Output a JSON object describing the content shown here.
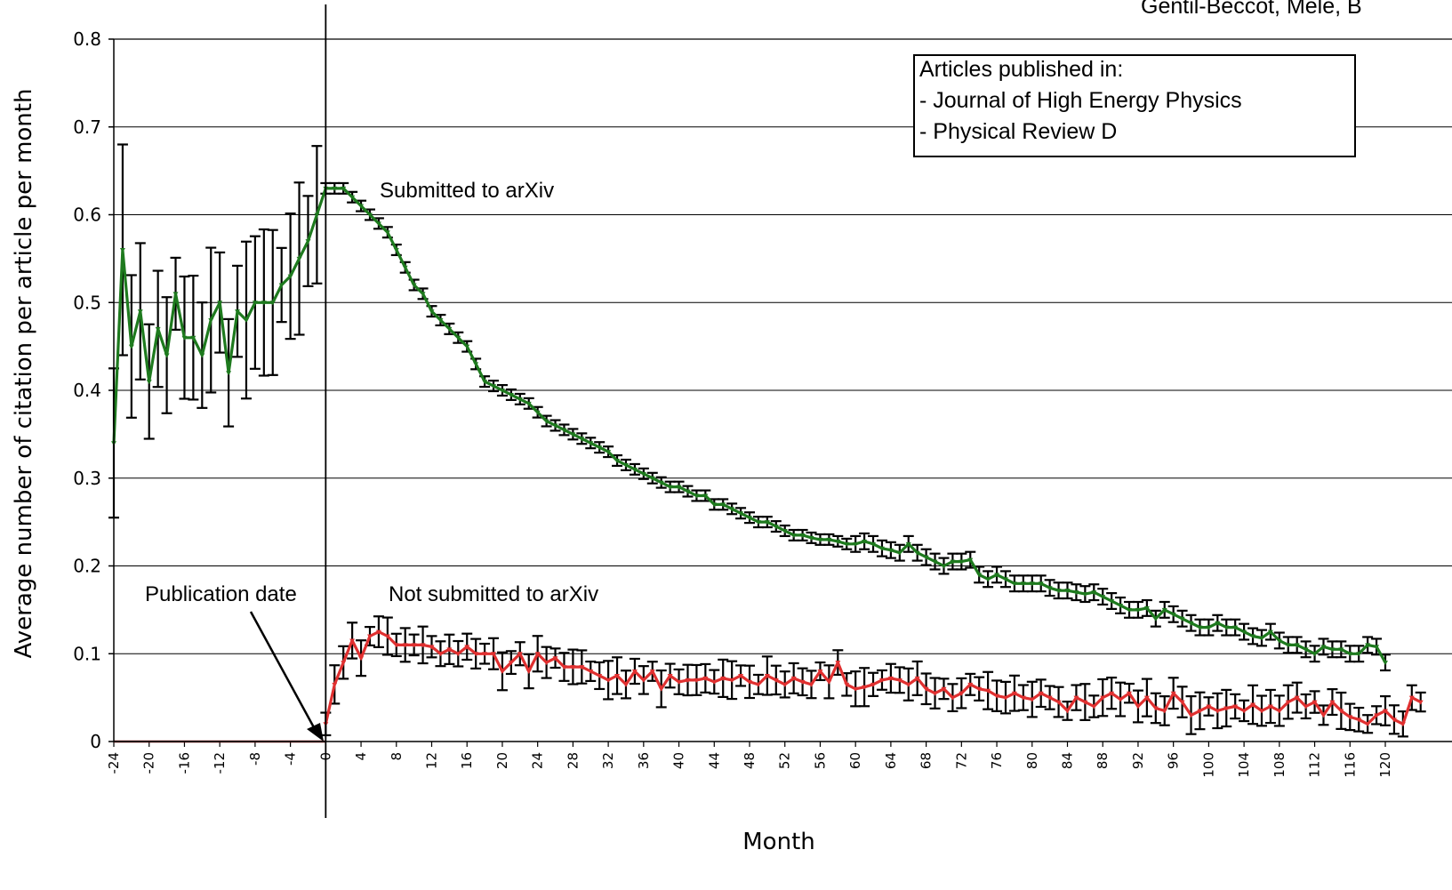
{
  "chart_data": {
    "type": "line",
    "title": "",
    "credit": "Gentil-Beccot, Mele, B",
    "xlabel": "Month",
    "ylabel": "Average number of citation per article per month",
    "xlim": [
      -24,
      120
    ],
    "ylim": [
      0,
      0.8
    ],
    "yticks": [
      "0",
      "0.1",
      "0.2",
      "0.3",
      "0.4",
      "0.5",
      "0.6",
      "0.7",
      "0.8"
    ],
    "xticks": [
      "-24",
      "-20",
      "-16",
      "-12",
      "-8",
      "-4",
      "0",
      "4",
      "8",
      "12",
      "16",
      "20",
      "24",
      "28",
      "32",
      "36",
      "40",
      "44",
      "48",
      "52",
      "56",
      "60",
      "64",
      "68",
      "72",
      "76",
      "80",
      "84",
      "88",
      "92",
      "96",
      "100",
      "104",
      "108",
      "112",
      "116",
      "120"
    ],
    "grid": "horizontal",
    "vertical_marker_x": 0,
    "legend_box": {
      "lines": [
        "Articles published in:",
        "- Journal of High Energy Physics",
        "- Physical Review D"
      ],
      "placement": "top-right"
    },
    "annotations": {
      "submitted": "Submitted to arXiv",
      "not_submitted": "Not submitted to arXiv",
      "publication": "Publication date"
    },
    "colors": {
      "submitted": "#1e7a1e",
      "not_submitted": "#e03030",
      "baseline": "#8b1a1a",
      "error": "#000000",
      "grid": "#000000"
    },
    "series": [
      {
        "key": "submitted",
        "x_start": -24,
        "values": [
          0.34,
          0.56,
          0.45,
          0.49,
          0.41,
          0.47,
          0.44,
          0.51,
          0.46,
          0.46,
          0.44,
          0.48,
          0.5,
          0.42,
          0.49,
          0.48,
          0.5,
          0.5,
          0.5,
          0.52,
          0.53,
          0.55,
          0.57,
          0.6,
          0.63,
          0.63,
          0.63,
          0.62,
          0.61,
          0.6,
          0.59,
          0.58,
          0.56,
          0.54,
          0.52,
          0.51,
          0.49,
          0.48,
          0.47,
          0.46,
          0.45,
          0.43,
          0.41,
          0.405,
          0.4,
          0.395,
          0.39,
          0.385,
          0.375,
          0.365,
          0.36,
          0.355,
          0.35,
          0.345,
          0.34,
          0.335,
          0.33,
          0.32,
          0.315,
          0.31,
          0.305,
          0.3,
          0.295,
          0.29,
          0.29,
          0.285,
          0.28,
          0.28,
          0.27,
          0.27,
          0.265,
          0.26,
          0.255,
          0.25,
          0.25,
          0.245,
          0.24,
          0.235,
          0.235,
          0.232,
          0.23,
          0.23,
          0.228,
          0.225,
          0.225,
          0.228,
          0.225,
          0.22,
          0.218,
          0.215,
          0.225,
          0.215,
          0.21,
          0.205,
          0.2,
          0.205,
          0.205,
          0.207,
          0.19,
          0.185,
          0.19,
          0.185,
          0.18,
          0.18,
          0.18,
          0.18,
          0.175,
          0.172,
          0.172,
          0.17,
          0.168,
          0.17,
          0.165,
          0.16,
          0.155,
          0.15,
          0.15,
          0.152,
          0.14,
          0.15,
          0.145,
          0.14,
          0.135,
          0.13,
          0.13,
          0.135,
          0.13,
          0.13,
          0.125,
          0.12,
          0.118,
          0.125,
          0.115,
          0.11,
          0.11,
          0.105,
          0.1,
          0.108,
          0.105,
          0.105,
          0.1,
          0.1,
          0.11,
          0.108,
          0.09
        ]
      },
      {
        "key": "not_submitted",
        "x_start": 0,
        "values": [
          0.02,
          0.065,
          0.09,
          0.115,
          0.095,
          0.12,
          0.125,
          0.12,
          0.11,
          0.11,
          0.11,
          0.11,
          0.108,
          0.1,
          0.105,
          0.1,
          0.108,
          0.1,
          0.1,
          0.1,
          0.08,
          0.09,
          0.1,
          0.08,
          0.1,
          0.09,
          0.095,
          0.085,
          0.085,
          0.085,
          0.08,
          0.075,
          0.07,
          0.075,
          0.065,
          0.08,
          0.07,
          0.08,
          0.06,
          0.075,
          0.068,
          0.07,
          0.07,
          0.072,
          0.068,
          0.072,
          0.07,
          0.075,
          0.068,
          0.065,
          0.075,
          0.07,
          0.065,
          0.072,
          0.068,
          0.065,
          0.08,
          0.068,
          0.09,
          0.065,
          0.06,
          0.062,
          0.065,
          0.07,
          0.072,
          0.07,
          0.065,
          0.072,
          0.06,
          0.055,
          0.06,
          0.05,
          0.055,
          0.065,
          0.06,
          0.058,
          0.052,
          0.05,
          0.055,
          0.05,
          0.048,
          0.055,
          0.05,
          0.045,
          0.035,
          0.05,
          0.045,
          0.04,
          0.05,
          0.055,
          0.048,
          0.055,
          0.04,
          0.05,
          0.038,
          0.035,
          0.055,
          0.045,
          0.03,
          0.035,
          0.04,
          0.035,
          0.038,
          0.04,
          0.035,
          0.042,
          0.035,
          0.04,
          0.035,
          0.045,
          0.05,
          0.04,
          0.045,
          0.03,
          0.045,
          0.035,
          0.028,
          0.025,
          0.02,
          0.03,
          0.035,
          0.025,
          0.02,
          0.05,
          0.045
        ]
      },
      {
        "key": "baseline",
        "x_start": -24,
        "values": [
          0,
          0,
          0,
          0,
          0,
          0,
          0,
          0,
          0,
          0,
          0,
          0,
          0,
          0,
          0,
          0,
          0,
          0,
          0,
          0,
          0,
          0,
          0,
          0,
          0
        ]
      }
    ]
  }
}
